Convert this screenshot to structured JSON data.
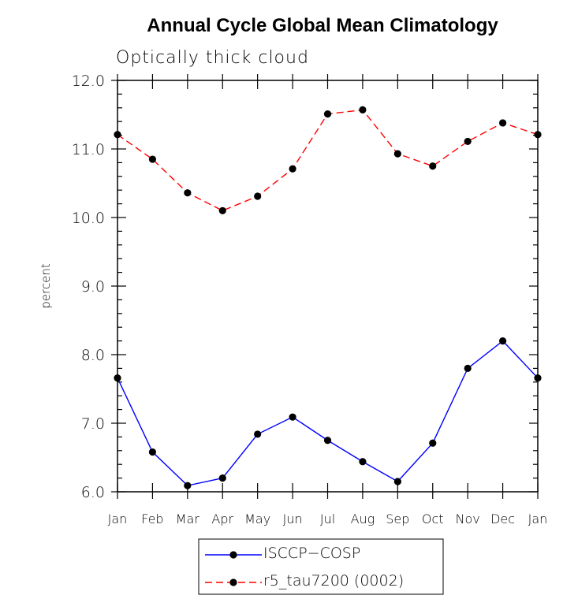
{
  "chart_data": {
    "type": "line",
    "title": "Annual Cycle Global Mean Climatology",
    "subtitle": "Optically thick cloud",
    "xlabel": "",
    "ylabel": "percent",
    "ylim": [
      6.0,
      12.0
    ],
    "yticks": [
      "6.0",
      "7.0",
      "8.0",
      "9.0",
      "10.0",
      "11.0",
      "12.0"
    ],
    "categories": [
      "Jan",
      "Feb",
      "Mar",
      "Apr",
      "May",
      "Jun",
      "Jul",
      "Aug",
      "Sep",
      "Oct",
      "Nov",
      "Dec",
      "Jan"
    ],
    "series": [
      {
        "name": "ISCCP−COSP",
        "color": "#0000ff",
        "line_style": "solid",
        "values": [
          7.66,
          6.58,
          6.09,
          6.2,
          6.84,
          7.09,
          6.75,
          6.44,
          6.15,
          6.71,
          7.8,
          8.2,
          7.66
        ]
      },
      {
        "name": "r5_tau7200 (0002)",
        "color": "#ff0000",
        "line_style": "dashed",
        "values": [
          11.21,
          10.85,
          10.36,
          10.1,
          10.31,
          10.71,
          11.51,
          11.57,
          10.93,
          10.75,
          11.11,
          11.38,
          11.21
        ]
      }
    ],
    "legend": "bottom-center"
  }
}
